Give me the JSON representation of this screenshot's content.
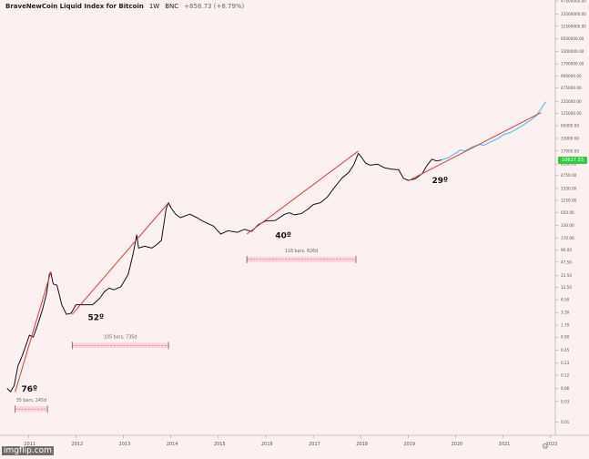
{
  "header": {
    "symbol": "BraveNewCoin Liquid Index for Bitcoin",
    "interval": "1W",
    "exchange": "BNC",
    "change": "+858.73 (+8.79%)"
  },
  "watermark": "imgflip.com",
  "last_price_label": "10627.33",
  "chart_data": {
    "type": "line",
    "title": "BraveNewCoin Liquid Index for Bitcoin",
    "yscale": "log",
    "ylim": [
      0.005,
      50000000
    ],
    "xlim": [
      2010.4,
      2022.1
    ],
    "x_ticks": [
      "2011",
      "2012",
      "2013",
      "2014",
      "2015",
      "2016",
      "2017",
      "2018",
      "2019",
      "2020",
      "2021",
      "2022"
    ],
    "y_ticks": [
      "47500000.00",
      "23500000.00",
      "12500000.00",
      "6500000.00",
      "3300000.00",
      "1700000.00",
      "900000.00",
      "475000.00",
      "235000.00",
      "125000.00",
      "65000.00",
      "33000.00",
      "17000.00",
      "8500.00",
      "4750.00",
      "2350.00",
      "1250.00",
      "650.00",
      "330.00",
      "170.00",
      "90.00",
      "47.50",
      "23.50",
      "12.50",
      "6.50",
      "3.30",
      "1.70",
      "0.90",
      "0.45",
      "0.23",
      "0.12",
      "0.06",
      "0.03",
      "0.01"
    ],
    "y_tick_values": [
      47500000,
      23500000,
      12500000,
      6500000,
      3300000,
      1700000,
      900000,
      475000,
      235000,
      125000,
      65000,
      33000,
      17000,
      8500,
      4750,
      2350,
      1250,
      650,
      330,
      170,
      90,
      47.5,
      23.5,
      12.5,
      6.5,
      3.3,
      1.7,
      0.9,
      0.45,
      0.23,
      0.12,
      0.06,
      0.03,
      0.01
    ],
    "series": [
      {
        "kind": "price",
        "color": "#111111",
        "points": [
          [
            2010.55,
            0.06
          ],
          [
            2010.62,
            0.05
          ],
          [
            2010.7,
            0.07
          ],
          [
            2010.78,
            0.2
          ],
          [
            2010.85,
            0.3
          ],
          [
            2010.95,
            0.6
          ],
          [
            2011.02,
            1.0
          ],
          [
            2011.1,
            0.9
          ],
          [
            2011.2,
            1.8
          ],
          [
            2011.3,
            4
          ],
          [
            2011.38,
            9
          ],
          [
            2011.44,
            25
          ],
          [
            2011.47,
            28
          ],
          [
            2011.52,
            15
          ],
          [
            2011.6,
            14
          ],
          [
            2011.7,
            5
          ],
          [
            2011.8,
            3
          ],
          [
            2011.9,
            3.2
          ],
          [
            2012.0,
            5
          ],
          [
            2012.2,
            5
          ],
          [
            2012.35,
            5
          ],
          [
            2012.5,
            7
          ],
          [
            2012.6,
            10
          ],
          [
            2012.7,
            12
          ],
          [
            2012.8,
            11
          ],
          [
            2012.95,
            13
          ],
          [
            2013.1,
            25
          ],
          [
            2013.2,
            70
          ],
          [
            2013.28,
            200
          ],
          [
            2013.32,
            100
          ],
          [
            2013.45,
            110
          ],
          [
            2013.6,
            100
          ],
          [
            2013.7,
            120
          ],
          [
            2013.8,
            150
          ],
          [
            2013.9,
            800
          ],
          [
            2013.95,
            1100
          ],
          [
            2014.0,
            850
          ],
          [
            2014.1,
            600
          ],
          [
            2014.2,
            500
          ],
          [
            2014.4,
            600
          ],
          [
            2014.55,
            500
          ],
          [
            2014.7,
            400
          ],
          [
            2014.9,
            320
          ],
          [
            2015.05,
            210
          ],
          [
            2015.2,
            250
          ],
          [
            2015.4,
            230
          ],
          [
            2015.55,
            270
          ],
          [
            2015.7,
            240
          ],
          [
            2015.85,
            350
          ],
          [
            2016.0,
            420
          ],
          [
            2016.2,
            430
          ],
          [
            2016.4,
            600
          ],
          [
            2016.5,
            650
          ],
          [
            2016.6,
            580
          ],
          [
            2016.75,
            620
          ],
          [
            2016.9,
            800
          ],
          [
            2017.0,
            1000
          ],
          [
            2017.15,
            1100
          ],
          [
            2017.3,
            1500
          ],
          [
            2017.45,
            2500
          ],
          [
            2017.6,
            4000
          ],
          [
            2017.75,
            5500
          ],
          [
            2017.85,
            8000
          ],
          [
            2017.95,
            15000
          ],
          [
            2018.0,
            13000
          ],
          [
            2018.1,
            9000
          ],
          [
            2018.2,
            8000
          ],
          [
            2018.35,
            8500
          ],
          [
            2018.5,
            7000
          ],
          [
            2018.65,
            6500
          ],
          [
            2018.8,
            6300
          ],
          [
            2018.9,
            4000
          ],
          [
            2019.0,
            3600
          ],
          [
            2019.15,
            3900
          ],
          [
            2019.3,
            5200
          ],
          [
            2019.4,
            8000
          ],
          [
            2019.5,
            11000
          ],
          [
            2019.6,
            10000
          ],
          [
            2019.7,
            10600
          ]
        ]
      },
      {
        "kind": "projection",
        "color": "#4fc3f7",
        "points": [
          [
            2019.7,
            10600
          ],
          [
            2019.85,
            12000
          ],
          [
            2020.0,
            15000
          ],
          [
            2020.1,
            18000
          ],
          [
            2020.2,
            17000
          ],
          [
            2020.35,
            21000
          ],
          [
            2020.5,
            24000
          ],
          [
            2020.6,
            23000
          ],
          [
            2020.75,
            28000
          ],
          [
            2020.9,
            33000
          ],
          [
            2021.0,
            40000
          ],
          [
            2021.15,
            45000
          ],
          [
            2021.3,
            55000
          ],
          [
            2021.45,
            70000
          ],
          [
            2021.6,
            90000
          ],
          [
            2021.7,
            110000
          ],
          [
            2021.8,
            160000
          ],
          [
            2021.9,
            230000
          ]
        ]
      }
    ],
    "trendlines": [
      {
        "from": [
          2010.72,
          0.05
        ],
        "to": [
          2011.47,
          28
        ],
        "color": "#e03a3a"
      },
      {
        "from": [
          2011.92,
          3
        ],
        "to": [
          2013.95,
          1100
        ],
        "color": "#e03a3a"
      },
      {
        "from": [
          2015.6,
          210
        ],
        "to": [
          2017.95,
          17000
        ],
        "color": "#e03a3a"
      },
      {
        "from": [
          2019.0,
          3500
        ],
        "to": [
          2021.8,
          130000
        ],
        "color": "#e03a3a"
      }
    ],
    "angle_annotations": [
      {
        "text": "76º",
        "x": 2010.85,
        "y": 0.05
      },
      {
        "text": "52º",
        "x": 2012.25,
        "y": 2.2
      },
      {
        "text": "40º",
        "x": 2016.2,
        "y": 170
      },
      {
        "text": "29º",
        "x": 2019.5,
        "y": 3100
      }
    ],
    "range_annotations": [
      {
        "text": "35 bars, 245d",
        "x0": 2010.72,
        "x1": 2011.4,
        "y": 0.02
      },
      {
        "text": "105 bars, 735d",
        "x0": 2011.92,
        "x1": 2013.95,
        "y": 0.58
      },
      {
        "text": "118 bars, 826d",
        "x0": 2015.6,
        "x1": 2017.9,
        "y": 55
      }
    ]
  }
}
